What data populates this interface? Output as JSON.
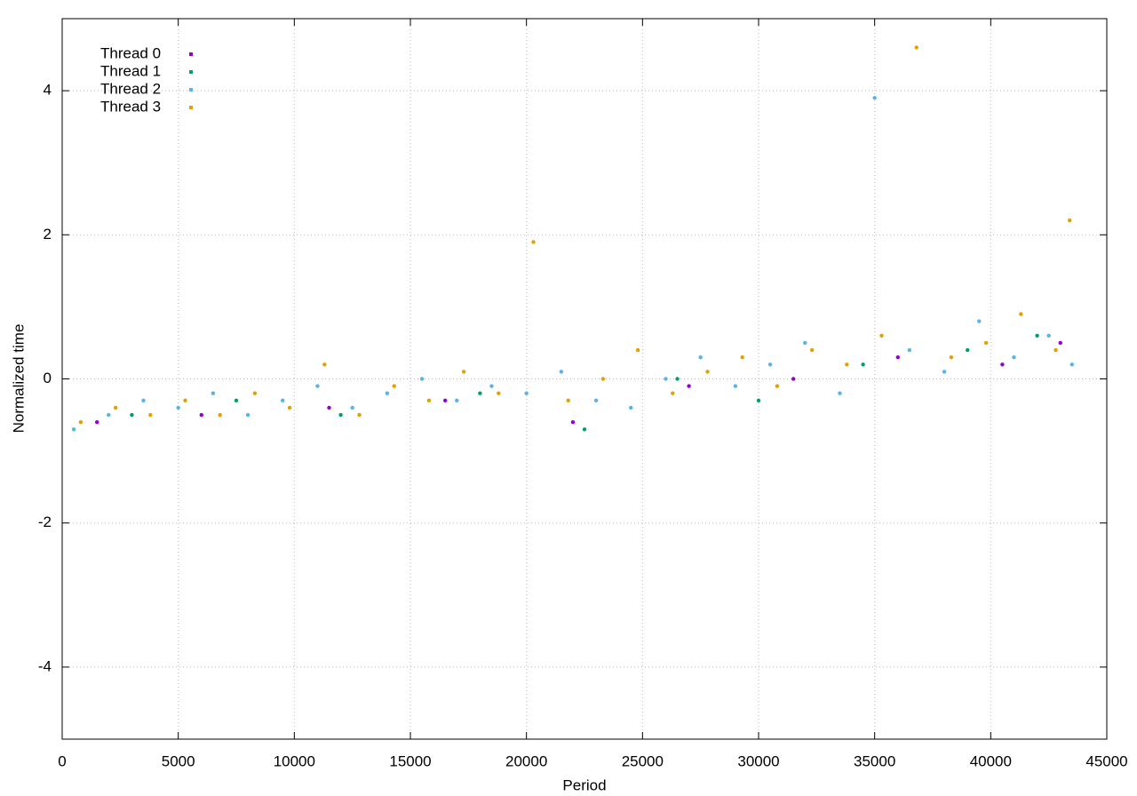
{
  "chart_data": {
    "type": "scatter",
    "x_label": "Period",
    "y_label": "Normalized time",
    "xlim": [
      0,
      45000
    ],
    "ylim": [
      -5,
      5
    ],
    "xticks": [
      0,
      5000,
      10000,
      15000,
      20000,
      25000,
      30000,
      35000,
      40000,
      45000
    ],
    "yticks": [
      -4,
      -2,
      0,
      2,
      4
    ],
    "grid": true,
    "legend": "top-left",
    "series": [
      {
        "name": "Thread 0",
        "color": "#9400d3",
        "x": [
          1500,
          6000,
          11500,
          16500,
          22000,
          27000,
          31500,
          36000,
          40500,
          43000
        ],
        "values": [
          -0.6,
          -0.5,
          -0.4,
          -0.3,
          -0.6,
          -0.1,
          0.0,
          0.3,
          0.2,
          0.5
        ]
      },
      {
        "name": "Thread 1",
        "color": "#009e73",
        "x": [
          3000,
          7500,
          12000,
          18000,
          22500,
          26500,
          30000,
          34500,
          39000,
          42000
        ],
        "values": [
          -0.5,
          -0.3,
          -0.5,
          -0.2,
          -0.7,
          0.0,
          -0.3,
          0.2,
          0.4,
          0.6
        ]
      },
      {
        "name": "Thread 2",
        "color": "#56b4e9",
        "x": [
          500,
          2000,
          3500,
          5000,
          6500,
          8000,
          9500,
          11000,
          12500,
          14000,
          15500,
          17000,
          18500,
          20000,
          21500,
          23000,
          24500,
          26000,
          27500,
          29000,
          30500,
          32000,
          33500,
          35000,
          36500,
          38000,
          39500,
          41000,
          42500,
          43500
        ],
        "values": [
          -0.7,
          -0.5,
          -0.3,
          -0.4,
          -0.2,
          -0.5,
          -0.3,
          -0.1,
          -0.4,
          -0.2,
          0.0,
          -0.3,
          -0.1,
          -0.2,
          0.1,
          -0.3,
          -0.4,
          0.0,
          0.3,
          -0.1,
          0.2,
          0.5,
          -0.2,
          3.9,
          0.4,
          0.1,
          0.8,
          0.3,
          0.6,
          0.2
        ]
      },
      {
        "name": "Thread 3",
        "color": "#e69f00",
        "x": [
          800,
          2300,
          3800,
          5300,
          6800,
          8300,
          9800,
          11300,
          12800,
          14300,
          15800,
          17300,
          18800,
          20300,
          21800,
          23300,
          24800,
          26300,
          27800,
          29300,
          30800,
          32300,
          33800,
          35300,
          36800,
          38300,
          39800,
          41300,
          42800,
          43400
        ],
        "values": [
          -0.6,
          -0.4,
          -0.5,
          -0.3,
          -0.5,
          -0.2,
          -0.4,
          0.2,
          -0.5,
          -0.1,
          -0.3,
          0.1,
          -0.2,
          1.9,
          -0.3,
          0.0,
          0.4,
          -0.2,
          0.1,
          0.3,
          -0.1,
          0.4,
          0.2,
          0.6,
          4.6,
          0.3,
          0.5,
          0.9,
          0.4,
          2.2
        ]
      }
    ]
  }
}
